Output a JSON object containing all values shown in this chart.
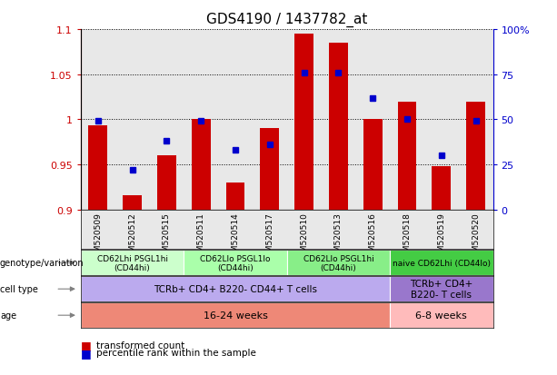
{
  "title": "GDS4190 / 1437782_at",
  "samples": [
    "GSM520509",
    "GSM520512",
    "GSM520515",
    "GSM520511",
    "GSM520514",
    "GSM520517",
    "GSM520510",
    "GSM520513",
    "GSM520516",
    "GSM520518",
    "GSM520519",
    "GSM520520"
  ],
  "red_values": [
    0.993,
    0.916,
    0.96,
    1.0,
    0.93,
    0.99,
    1.095,
    1.085,
    1.0,
    1.02,
    0.948,
    1.02
  ],
  "blue_values": [
    49,
    22,
    38,
    49,
    33,
    36,
    76,
    76,
    62,
    50,
    30,
    49
  ],
  "ylim_left": [
    0.9,
    1.1
  ],
  "ylim_right": [
    0,
    100
  ],
  "yticks_left": [
    0.9,
    0.95,
    1.0,
    1.05,
    1.1
  ],
  "yticks_right": [
    0,
    25,
    50,
    75,
    100
  ],
  "ytick_labels_left": [
    "0.9",
    "0.95",
    "1",
    "1.05",
    "1.1"
  ],
  "ytick_labels_right": [
    "0",
    "25",
    "50",
    "75",
    "100%"
  ],
  "bar_color": "#cc0000",
  "dot_color": "#0000cc",
  "bg_color": "#e8e8e8",
  "genotype_groups": [
    {
      "label": "CD62Lhi PSGL1hi\n(CD44hi)",
      "start": 0,
      "end": 2,
      "color": "#ccffcc"
    },
    {
      "label": "CD62Llo PSGL1lo\n(CD44hi)",
      "start": 3,
      "end": 5,
      "color": "#aaffaa"
    },
    {
      "label": "CD62Llo PSGL1hi\n(CD44hi)",
      "start": 6,
      "end": 8,
      "color": "#88ee88"
    },
    {
      "label": "naive CD62Lhi (CD44lo)",
      "start": 9,
      "end": 11,
      "color": "#44cc44"
    }
  ],
  "cell_type_groups": [
    {
      "label": "TCRb+ CD4+ B220- CD44+ T cells",
      "start": 0,
      "end": 8,
      "color": "#bbaaee"
    },
    {
      "label": "TCRb+ CD4+\nB220- T cells",
      "start": 9,
      "end": 11,
      "color": "#9977cc"
    }
  ],
  "age_groups": [
    {
      "label": "16-24 weeks",
      "start": 0,
      "end": 8,
      "color": "#ee8877"
    },
    {
      "label": "6-8 weeks",
      "start": 9,
      "end": 11,
      "color": "#ffbbbb"
    }
  ],
  "legend_items": [
    {
      "color": "#cc0000",
      "label": "transformed count"
    },
    {
      "color": "#0000cc",
      "label": "percentile rank within the sample"
    }
  ]
}
